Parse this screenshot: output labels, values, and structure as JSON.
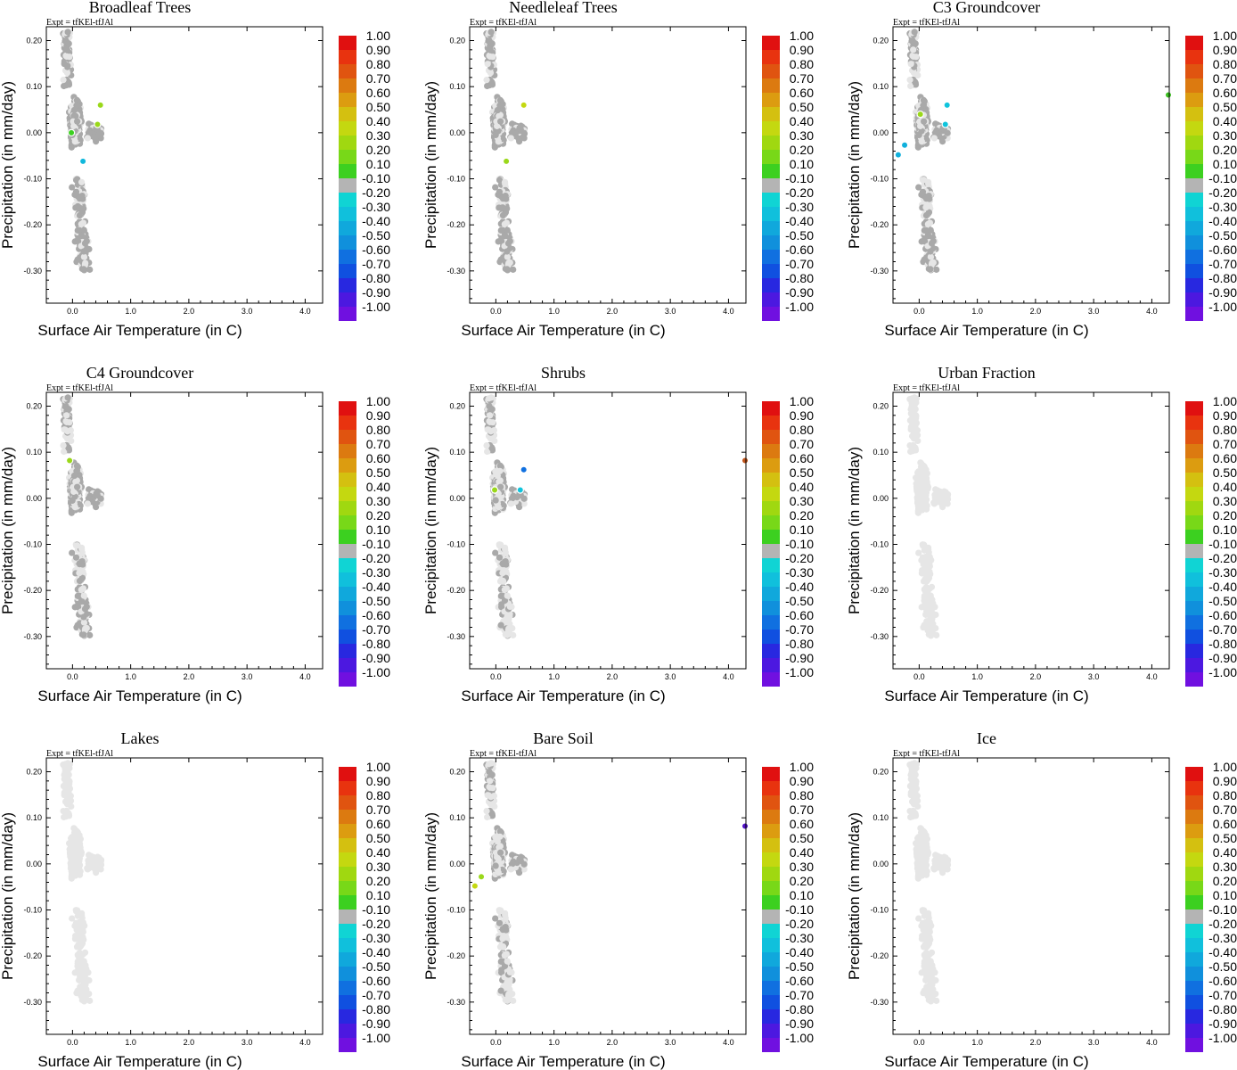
{
  "figure": {
    "expt_label": "Expt = tfKEl-tfJAl",
    "xlabel": "Surface Air Temperature (in C)",
    "ylabel": "Precipitation (in mm/day)",
    "x_ticks": [
      "0.0",
      "1.0",
      "2.0",
      "3.0",
      "4.0"
    ],
    "y_ticks": [
      "0.20",
      "0.10",
      "0.00",
      "-0.10",
      "-0.20",
      "-0.30"
    ],
    "colorbar": {
      "labels": [
        "1.00",
        "0.90",
        "0.80",
        "0.70",
        "0.60",
        "0.50",
        "0.40",
        "0.30",
        "0.20",
        "0.10",
        "-0.10",
        "-0.20",
        "-0.30",
        "-0.40",
        "-0.50",
        "-0.60",
        "-0.70",
        "-0.80",
        "-0.90",
        "-1.00"
      ],
      "colors": [
        "#e01010",
        "#e8330f",
        "#e05410",
        "#dc7a10",
        "#dc9c10",
        "#d4c010",
        "#c4d810",
        "#a0d810",
        "#78d818",
        "#3cd020",
        "#b4b4b4",
        "#10d4d4",
        "#10c0dc",
        "#10a8dc",
        "#1090dc",
        "#1070e0",
        "#1050e0",
        "#2828e0",
        "#4c18e0",
        "#7010e0"
      ]
    },
    "colors": {
      "light_gray": "#e6e6e6",
      "dark_gray": "#a9a9a9"
    }
  },
  "chart_data": [
    {
      "type": "scatter",
      "title": "Broadleaf Trees",
      "xlim": [
        -0.45,
        4.3
      ],
      "ylim": [
        -0.37,
        0.23
      ],
      "emphasis": 1.0,
      "points": [
        {
          "x": 0.48,
          "y": 0.06,
          "color": "#9ad81a"
        },
        {
          "x": 0.43,
          "y": 0.018,
          "color": "#9ad81a"
        },
        {
          "x": -0.02,
          "y": 0.0,
          "color": "#3cd020"
        },
        {
          "x": 0.18,
          "y": -0.062,
          "color": "#10b8dc"
        }
      ]
    },
    {
      "type": "scatter",
      "title": "Needleleaf Trees",
      "xlim": [
        -0.45,
        4.3
      ],
      "ylim": [
        -0.37,
        0.23
      ],
      "emphasis": 0.95,
      "points": [
        {
          "x": 0.48,
          "y": 0.06,
          "color": "#c4d810"
        },
        {
          "x": 0.18,
          "y": -0.062,
          "color": "#9ad81a"
        }
      ]
    },
    {
      "type": "scatter",
      "title": "C3 Groundcover",
      "xlim": [
        -0.45,
        4.3
      ],
      "ylim": [
        -0.37,
        0.23
      ],
      "emphasis": 0.85,
      "points": [
        {
          "x": 4.35,
          "y": 0.082,
          "color": "#3cc020"
        },
        {
          "x": 0.48,
          "y": 0.06,
          "color": "#10c4dc"
        },
        {
          "x": 0.45,
          "y": 0.018,
          "color": "#10c4dc"
        },
        {
          "x": 0.02,
          "y": 0.04,
          "color": "#9ad81a"
        },
        {
          "x": -0.25,
          "y": -0.027,
          "color": "#10b0dc"
        },
        {
          "x": -0.36,
          "y": -0.048,
          "color": "#10b0dc"
        }
      ]
    },
    {
      "type": "scatter",
      "title": "C4 Groundcover",
      "xlim": [
        -0.45,
        4.3
      ],
      "ylim": [
        -0.37,
        0.23
      ],
      "emphasis": 0.8,
      "points": [
        {
          "x": -0.05,
          "y": 0.082,
          "color": "#9ad81a"
        }
      ]
    },
    {
      "type": "scatter",
      "title": "Shrubs",
      "xlim": [
        -0.45,
        4.3
      ],
      "ylim": [
        -0.37,
        0.23
      ],
      "emphasis": 0.6,
      "points": [
        {
          "x": 4.3,
          "y": 0.082,
          "color": "#c0541a"
        },
        {
          "x": 0.48,
          "y": 0.062,
          "color": "#1070e0"
        },
        {
          "x": 0.42,
          "y": 0.018,
          "color": "#10c4dc"
        },
        {
          "x": -0.02,
          "y": 0.018,
          "color": "#9ad81a"
        }
      ]
    },
    {
      "type": "scatter",
      "title": "Urban Fraction",
      "xlim": [
        -0.45,
        4.3
      ],
      "ylim": [
        -0.37,
        0.23
      ],
      "emphasis": 0.0,
      "points": []
    },
    {
      "type": "scatter",
      "title": "Lakes",
      "xlim": [
        -0.45,
        4.3
      ],
      "ylim": [
        -0.37,
        0.23
      ],
      "emphasis": 0.0,
      "points": []
    },
    {
      "type": "scatter",
      "title": "Bare Soil",
      "xlim": [
        -0.45,
        4.3
      ],
      "ylim": [
        -0.37,
        0.23
      ],
      "emphasis": 0.6,
      "points": [
        {
          "x": 4.3,
          "y": 0.082,
          "color": "#5010c8"
        },
        {
          "x": -0.25,
          "y": -0.028,
          "color": "#9ad81a"
        },
        {
          "x": -0.36,
          "y": -0.048,
          "color": "#c4d810"
        }
      ]
    },
    {
      "type": "scatter",
      "title": "Ice",
      "xlim": [
        -0.45,
        4.3
      ],
      "ylim": [
        -0.37,
        0.23
      ],
      "emphasis": 0.0,
      "points": []
    }
  ]
}
